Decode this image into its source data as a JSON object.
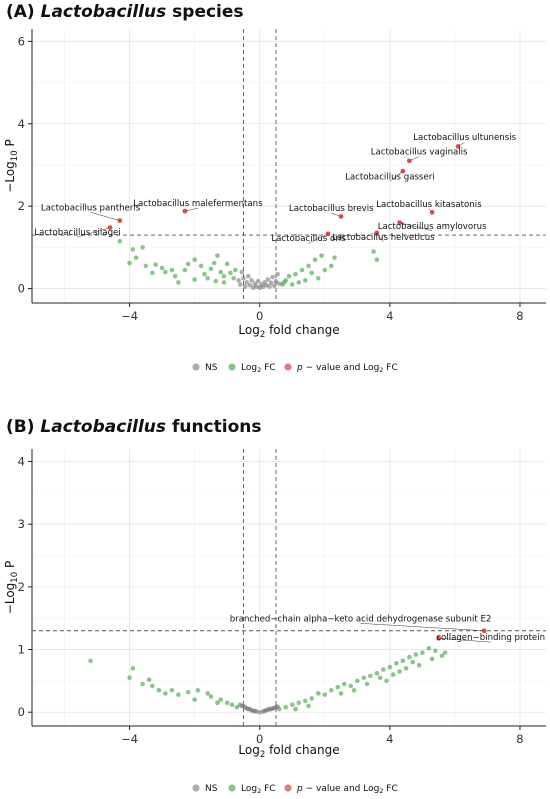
{
  "chart_data": [
    {
      "type": "scatter",
      "title_prefix": "(A)",
      "title_italic": "Lactobacillus",
      "title_suffix": "species",
      "xlabel": "Log2 fold change",
      "ylabel": "−Log10 P",
      "xlim": [
        -7,
        8.8
      ],
      "ylim": [
        -0.35,
        6.3
      ],
      "xticks": [
        -4,
        0,
        4,
        8
      ],
      "yticks": [
        0,
        2,
        4,
        6
      ],
      "thresholds": {
        "fc": [
          -0.5,
          0.5
        ],
        "p": 1.3
      },
      "colors": {
        "NS": "#777777",
        "FC": "#3aa03a",
        "P": "#d42424"
      },
      "legend": [
        "NS",
        "Log2 FC",
        "p − value and Log2 FC"
      ],
      "labeled": [
        {
          "label": "Lactobacillus ultunensis",
          "x": 6.1,
          "y": 3.45,
          "lx": 6.3,
          "ly": 3.6,
          "anchor": "middle"
        },
        {
          "label": "Lactobacillus vaginalis",
          "x": 4.6,
          "y": 3.1,
          "lx": 4.9,
          "ly": 3.25,
          "anchor": "middle"
        },
        {
          "label": "Lactobacillus gasseri",
          "x": 4.4,
          "y": 2.85,
          "lx": 4.0,
          "ly": 2.65,
          "anchor": "middle"
        },
        {
          "label": "Lactobacillus kitasatonis",
          "x": 5.3,
          "y": 1.85,
          "lx": 5.2,
          "ly": 1.98,
          "anchor": "middle"
        },
        {
          "label": "Lactobacillus brevis",
          "x": 2.5,
          "y": 1.75,
          "lx": 2.2,
          "ly": 1.88,
          "anchor": "middle"
        },
        {
          "label": "Lactobacillus amylovorus",
          "x": 4.3,
          "y": 1.6,
          "lx": 5.3,
          "ly": 1.45,
          "anchor": "middle"
        },
        {
          "label": "Lactobacillus helveticus",
          "x": 3.6,
          "y": 1.35,
          "lx": 3.8,
          "ly": 1.18,
          "anchor": "middle"
        },
        {
          "label": "Lactobacillus oris",
          "x": 2.1,
          "y": 1.33,
          "lx": 1.5,
          "ly": 1.15,
          "anchor": "middle"
        },
        {
          "label": "Lactobacillus malefermentans",
          "x": -2.3,
          "y": 1.88,
          "lx": -1.9,
          "ly": 2.0,
          "anchor": "middle"
        },
        {
          "label": "Lactobacillus pantheris",
          "x": -4.3,
          "y": 1.65,
          "lx": -5.2,
          "ly": 1.9,
          "anchor": "middle"
        },
        {
          "label": "Lactobacillus silagei",
          "x": -4.6,
          "y": 1.48,
          "lx": -5.6,
          "ly": 1.3,
          "anchor": "middle"
        }
      ],
      "fc_points": [
        [
          -4.3,
          1.15
        ],
        [
          -3.9,
          0.95
        ],
        [
          -4.0,
          0.62
        ],
        [
          -3.8,
          0.75
        ],
        [
          -3.5,
          0.55
        ],
        [
          -3.2,
          0.58
        ],
        [
          -3.0,
          0.5
        ],
        [
          -3.3,
          0.38
        ],
        [
          -2.9,
          0.4
        ],
        [
          -2.6,
          0.3
        ],
        [
          -2.5,
          0.15
        ],
        [
          -2.3,
          0.45
        ],
        [
          -2.2,
          0.6
        ],
        [
          -2.0,
          0.7
        ],
        [
          -1.8,
          0.55
        ],
        [
          -1.7,
          0.35
        ],
        [
          -1.6,
          0.25
        ],
        [
          -1.5,
          0.48
        ],
        [
          -1.4,
          0.62
        ],
        [
          -1.3,
          0.8
        ],
        [
          -1.2,
          0.4
        ],
        [
          -1.1,
          0.3
        ],
        [
          -1.0,
          0.6
        ],
        [
          -0.9,
          0.38
        ],
        [
          -0.8,
          0.25
        ],
        [
          -2.7,
          0.45
        ],
        [
          -3.6,
          1.0
        ],
        [
          -2.0,
          0.22
        ],
        [
          -1.1,
          0.15
        ],
        [
          -0.75,
          0.45
        ],
        [
          0.7,
          0.1
        ],
        [
          0.8,
          0.2
        ],
        [
          0.9,
          0.3
        ],
        [
          1.1,
          0.35
        ],
        [
          1.3,
          0.45
        ],
        [
          1.5,
          0.55
        ],
        [
          1.7,
          0.7
        ],
        [
          1.9,
          0.8
        ],
        [
          2.0,
          0.45
        ],
        [
          1.8,
          0.25
        ],
        [
          1.4,
          0.2
        ],
        [
          2.2,
          0.55
        ],
        [
          1.2,
          0.15
        ],
        [
          3.5,
          0.9
        ],
        [
          3.6,
          0.7
        ],
        [
          2.3,
          0.75
        ],
        [
          0.75,
          0.15
        ],
        [
          1.0,
          0.1
        ],
        [
          1.6,
          0.38
        ],
        [
          -1.35,
          0.18
        ]
      ],
      "ns_points": [
        [
          -0.6,
          0.1
        ],
        [
          -0.5,
          0.25
        ],
        [
          -0.45,
          0.05
        ],
        [
          -0.4,
          0.15
        ],
        [
          -0.35,
          0.3
        ],
        [
          -0.3,
          0.08
        ],
        [
          -0.25,
          0.2
        ],
        [
          -0.2,
          0.02
        ],
        [
          -0.15,
          0.12
        ],
        [
          -0.1,
          0.05
        ],
        [
          -0.05,
          0.18
        ],
        [
          0.0,
          0.02
        ],
        [
          0.05,
          0.1
        ],
        [
          0.1,
          0.04
        ],
        [
          0.15,
          0.15
        ],
        [
          0.2,
          0.08
        ],
        [
          0.25,
          0.22
        ],
        [
          0.3,
          0.05
        ],
        [
          0.35,
          0.14
        ],
        [
          0.4,
          0.28
        ],
        [
          0.45,
          0.07
        ],
        [
          0.5,
          0.18
        ],
        [
          0.55,
          0.35
        ],
        [
          0.6,
          0.12
        ],
        [
          -0.55,
          0.4
        ],
        [
          -0.65,
          0.2
        ]
      ]
    },
    {
      "type": "scatter",
      "title_prefix": "(B)",
      "title_italic": "Lactobacillus",
      "title_suffix": "functions",
      "xlabel": "Log2 fold change",
      "ylabel": "−Log10 P",
      "xlim": [
        -7,
        8.8
      ],
      "ylim": [
        -0.22,
        4.2
      ],
      "xticks": [
        -4,
        0,
        4,
        8
      ],
      "yticks": [
        0,
        1,
        2,
        3,
        4
      ],
      "thresholds": {
        "fc": [
          -0.5,
          0.5
        ],
        "p": 1.3
      },
      "colors": {
        "NS": "#777777",
        "FC": "#3aa03a",
        "P": "#d42424"
      },
      "legend": [
        "NS",
        "Log2 FC",
        "p − value and Log2 FC"
      ],
      "labeled": [
        {
          "label": "branched−chain alpha−keto acid dehydrogenase subunit E2",
          "x": 6.9,
          "y": 1.3,
          "lx": 3.1,
          "ly": 1.45,
          "anchor": "middle"
        },
        {
          "label": "collagen−binding protein",
          "x": 5.5,
          "y": 1.18,
          "lx": 7.1,
          "ly": 1.15,
          "anchor": "middle"
        }
      ],
      "fc_points": [
        [
          -5.2,
          0.82
        ],
        [
          -3.9,
          0.7
        ],
        [
          -4.0,
          0.55
        ],
        [
          -3.6,
          0.45
        ],
        [
          -3.3,
          0.42
        ],
        [
          -3.1,
          0.35
        ],
        [
          -2.9,
          0.3
        ],
        [
          -2.7,
          0.35
        ],
        [
          -2.5,
          0.28
        ],
        [
          -2.2,
          0.32
        ],
        [
          -1.9,
          0.35
        ],
        [
          -1.6,
          0.3
        ],
        [
          -1.5,
          0.25
        ],
        [
          -1.2,
          0.2
        ],
        [
          -1.0,
          0.15
        ],
        [
          -0.85,
          0.12
        ],
        [
          -0.7,
          0.08
        ],
        [
          -1.3,
          0.15
        ],
        [
          -2.0,
          0.2
        ],
        [
          -3.4,
          0.52
        ],
        [
          0.6,
          0.05
        ],
        [
          0.8,
          0.08
        ],
        [
          1.0,
          0.12
        ],
        [
          1.2,
          0.15
        ],
        [
          1.4,
          0.18
        ],
        [
          1.6,
          0.22
        ],
        [
          1.8,
          0.3
        ],
        [
          2.0,
          0.28
        ],
        [
          2.2,
          0.35
        ],
        [
          2.4,
          0.4
        ],
        [
          2.6,
          0.45
        ],
        [
          2.8,
          0.42
        ],
        [
          3.0,
          0.5
        ],
        [
          3.2,
          0.55
        ],
        [
          3.4,
          0.58
        ],
        [
          3.6,
          0.62
        ],
        [
          3.8,
          0.68
        ],
        [
          4.0,
          0.72
        ],
        [
          4.2,
          0.78
        ],
        [
          4.4,
          0.82
        ],
        [
          4.6,
          0.88
        ],
        [
          4.8,
          0.92
        ],
        [
          5.0,
          0.95
        ],
        [
          5.2,
          1.02
        ],
        [
          5.4,
          0.98
        ],
        [
          3.3,
          0.45
        ],
        [
          3.7,
          0.55
        ],
        [
          4.1,
          0.6
        ],
        [
          4.5,
          0.7
        ],
        [
          4.9,
          0.75
        ],
        [
          5.3,
          0.85
        ],
        [
          5.6,
          0.9
        ],
        [
          2.5,
          0.3
        ],
        [
          1.5,
          0.1
        ],
        [
          3.9,
          0.5
        ],
        [
          4.3,
          0.65
        ],
        [
          1.1,
          0.05
        ],
        [
          2.9,
          0.35
        ],
        [
          5.7,
          0.95
        ],
        [
          4.7,
          0.8
        ]
      ],
      "ns_points": [
        [
          -0.6,
          0.12
        ],
        [
          -0.5,
          0.1
        ],
        [
          -0.45,
          0.08
        ],
        [
          -0.4,
          0.06
        ],
        [
          -0.35,
          0.05
        ],
        [
          -0.3,
          0.05
        ],
        [
          -0.25,
          0.03
        ],
        [
          -0.2,
          0.02
        ],
        [
          -0.15,
          0.02
        ],
        [
          -0.1,
          0.01
        ],
        [
          0.0,
          0.0
        ],
        [
          0.1,
          0.01
        ],
        [
          0.15,
          0.02
        ],
        [
          0.2,
          0.03
        ],
        [
          0.25,
          0.04
        ],
        [
          0.3,
          0.05
        ],
        [
          0.35,
          0.05
        ],
        [
          0.4,
          0.06
        ],
        [
          0.45,
          0.07
        ],
        [
          0.5,
          0.08
        ],
        [
          0.55,
          0.09
        ],
        [
          -0.55,
          0.1
        ]
      ]
    }
  ]
}
